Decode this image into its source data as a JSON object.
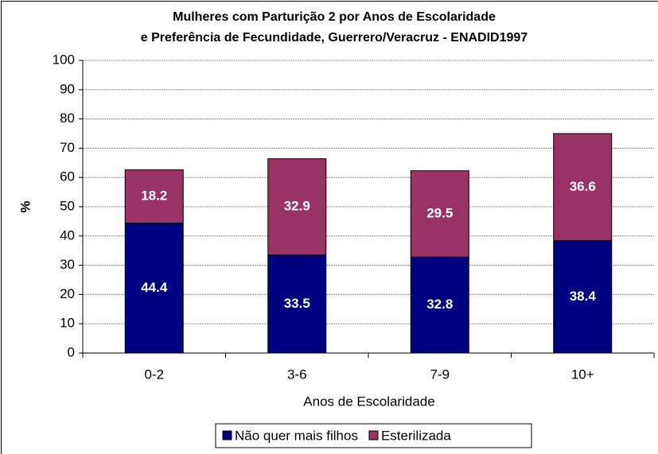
{
  "chart_data": {
    "type": "stacked_bar",
    "title": [
      "Mulheres com Parturição 2 por Anos de Escolaridade",
      "e Preferência de Fecundidade, Guerrero/Veracruz - ENADID1997"
    ],
    "x_label": "Anos de Escolaridade",
    "y_label": "%",
    "categories": [
      "0-2",
      "3-6",
      "7-9",
      "10+"
    ],
    "series": [
      {
        "name": "Não quer mais filhos",
        "color": "#000080",
        "values": [
          44.4,
          33.5,
          32.8,
          38.4
        ]
      },
      {
        "name": "Esterilizada",
        "color": "#993366",
        "values": [
          18.2,
          32.9,
          29.5,
          36.6
        ]
      }
    ],
    "ylim": [
      0,
      100
    ],
    "yticks": [
      0,
      10,
      20,
      30,
      40,
      50,
      60,
      70,
      80,
      90,
      100
    ],
    "grid": true
  }
}
